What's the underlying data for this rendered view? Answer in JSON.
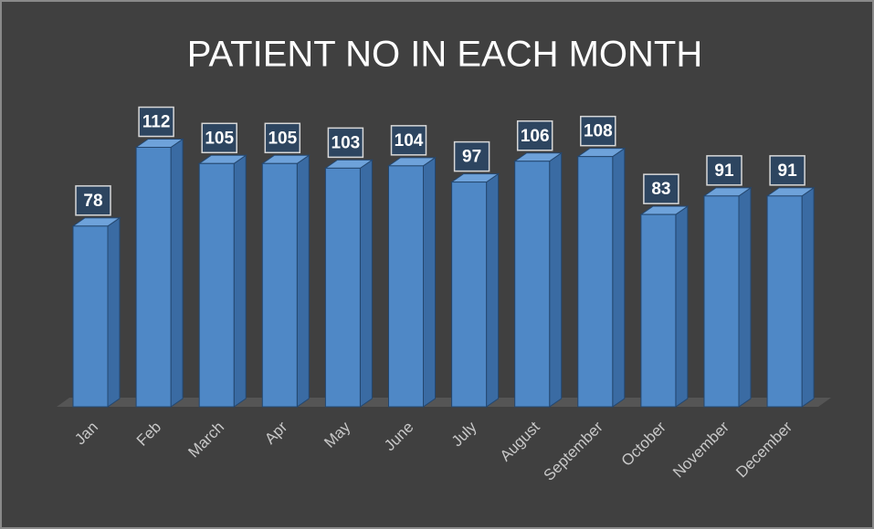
{
  "chart_data": {
    "type": "bar3d",
    "title": "PATIENT NO IN EACH MONTH",
    "categories": [
      "Jan",
      "Feb",
      "March",
      "Apr",
      "May",
      "June",
      "July",
      "August",
      "September",
      "October",
      "November",
      "December"
    ],
    "values": [
      78,
      112,
      105,
      105,
      103,
      104,
      97,
      106,
      108,
      83,
      91,
      91
    ],
    "color": "#4f88c6"
  }
}
